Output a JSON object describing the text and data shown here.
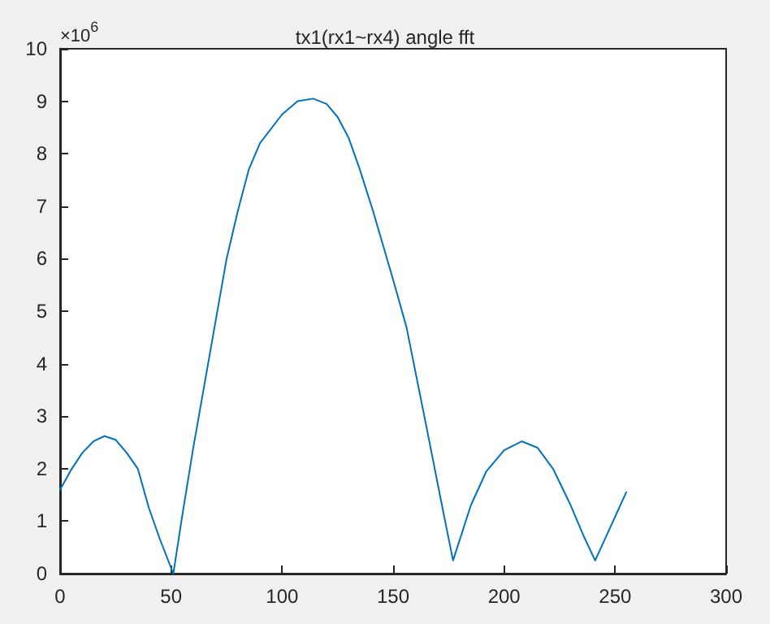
{
  "chart_data": {
    "type": "line",
    "title": "tx1(rx1~rx4) angle fft",
    "annotations": [
      "×10$^{6}$"
    ],
    "x": [
      0,
      5,
      10,
      15,
      20,
      25,
      30,
      35,
      40,
      45,
      51,
      55,
      60,
      65,
      70,
      75,
      80,
      85,
      90,
      100,
      107,
      114,
      120,
      125,
      130,
      135,
      141,
      150,
      156,
      165,
      172,
      177,
      185,
      192,
      200,
      208,
      215,
      222,
      230,
      236,
      241,
      248,
      255
    ],
    "series": [
      {
        "color": "#0072bd",
        "values": [
          1.6,
          1.98,
          2.3,
          2.52,
          2.62,
          2.55,
          2.3,
          2.0,
          1.25,
          0.65,
          0,
          1.1,
          2.4,
          3.6,
          4.8,
          6.0,
          6.9,
          7.7,
          8.2,
          8.75,
          9.0,
          9.05,
          8.95,
          8.7,
          8.3,
          7.7,
          6.9,
          5.6,
          4.7,
          2.8,
          1.3,
          0.25,
          1.3,
          1.95,
          2.35,
          2.52,
          2.4,
          2.0,
          1.3,
          0.7,
          0.25,
          0.9,
          1.55
        ]
      }
    ],
    "xlim": [
      0,
      300
    ],
    "xticks": [
      0,
      50,
      100,
      150,
      200,
      250,
      300
    ],
    "ylim": [
      0,
      10
    ],
    "yticks": [
      0,
      1,
      2,
      3,
      4,
      5,
      6,
      7,
      8,
      9,
      10
    ],
    "grid": false,
    "marker": "none",
    "line_style": "solid"
  }
}
